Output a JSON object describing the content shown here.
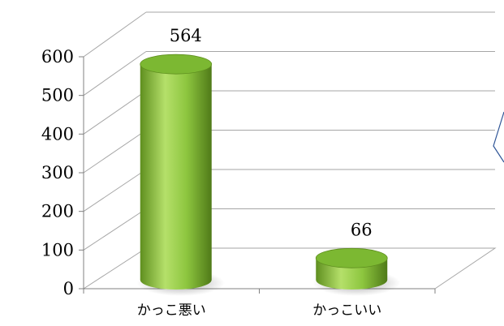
{
  "chart_data": {
    "type": "bar",
    "style": "3d-cylinder",
    "categories": [
      "かっこ悪い",
      "かっこいい"
    ],
    "values": [
      564,
      66
    ],
    "data_labels": [
      "564",
      "66"
    ],
    "y_ticks": [
      "0",
      "100",
      "200",
      "300",
      "400",
      "500",
      "600"
    ],
    "ylim": [
      0,
      600
    ],
    "grid": true,
    "legend": "none",
    "colors": {
      "bar_main": "#8dc63f",
      "bar_light": "#b5e06a",
      "bar_dark": "#5f8f1f",
      "bar_top": "#7cb832",
      "gridline": "#a6a6a6",
      "axis": "#808080",
      "callout": "#2f5597"
    }
  }
}
